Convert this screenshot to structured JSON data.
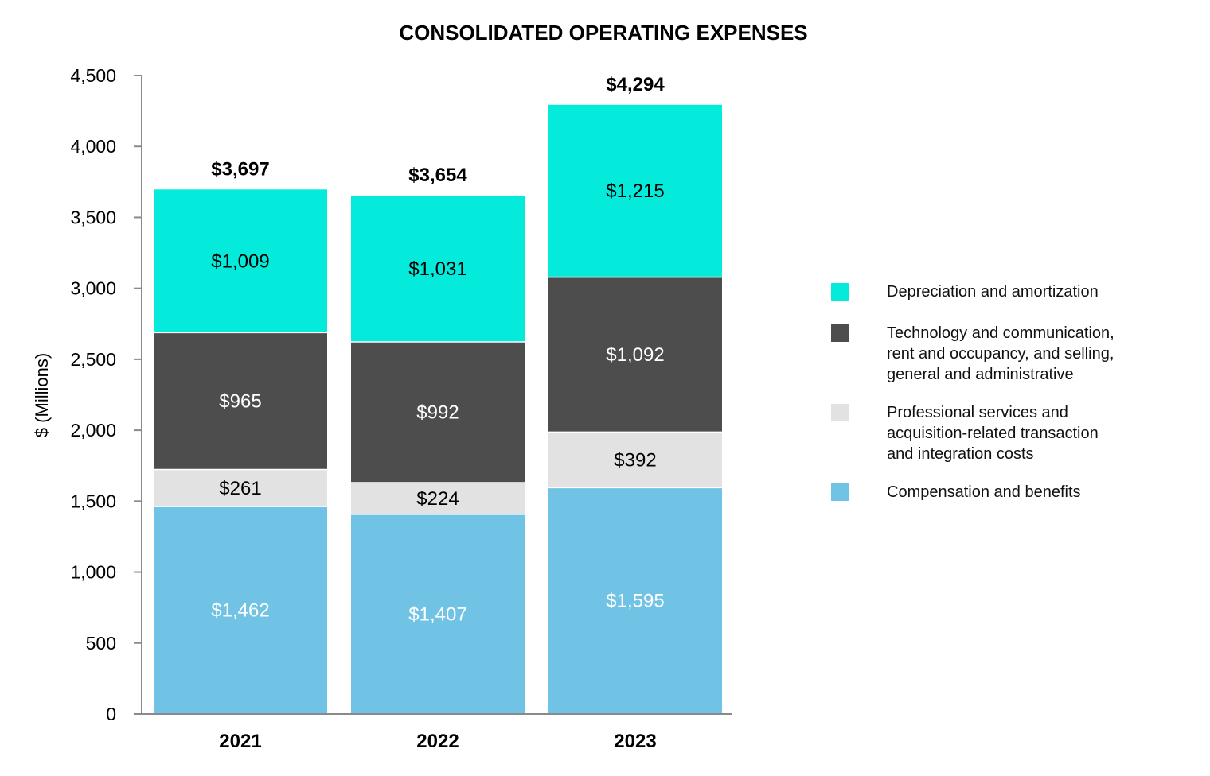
{
  "chart_data": {
    "type": "bar",
    "stacked": true,
    "title": "CONSOLIDATED OPERATING EXPENSES",
    "xlabel": "",
    "ylabel": "$ (Millions)",
    "ylim": [
      0,
      4500
    ],
    "yticks": [
      0,
      500,
      1000,
      1500,
      2000,
      2500,
      3000,
      3500,
      4000,
      4500
    ],
    "ytick_labels": [
      "0",
      "500",
      "1,000",
      "1,500",
      "2,000",
      "2,500",
      "3,000",
      "3,500",
      "4,000",
      "4,500"
    ],
    "categories": [
      "2021",
      "2022",
      "2023"
    ],
    "totals": [
      3697,
      3654,
      4294
    ],
    "total_labels": [
      "$3,697",
      "$3,654",
      "$4,294"
    ],
    "series": [
      {
        "name": "Compensation and benefits",
        "color": "#71c3e6",
        "values": [
          1462,
          1407,
          1595
        ],
        "labels": [
          "$1,462",
          "$1,407",
          "$1,595"
        ],
        "label_color": "#ffffff"
      },
      {
        "name": "Professional services and\n acquisition-related transaction\n and integration costs",
        "color": "#e2e2e2",
        "values": [
          261,
          224,
          392
        ],
        "labels": [
          "$261",
          "$224",
          "$392"
        ],
        "label_color": "#000000"
      },
      {
        "name": "Technology and communication,\nrent and occupancy, and selling,\ngeneral and administrative",
        "color": "#4d4d4d",
        "values": [
          965,
          992,
          1092
        ],
        "labels": [
          "$965",
          "$992",
          "$1,092"
        ],
        "label_color": "#ffffff"
      },
      {
        "name": "Depreciation and amortization",
        "color": "#05ebdb",
        "values": [
          1009,
          1031,
          1215
        ],
        "labels": [
          "$1,009",
          "$1,031",
          "$1,215"
        ],
        "label_color": "#000000"
      }
    ],
    "legend_position": "right",
    "grid": false
  }
}
